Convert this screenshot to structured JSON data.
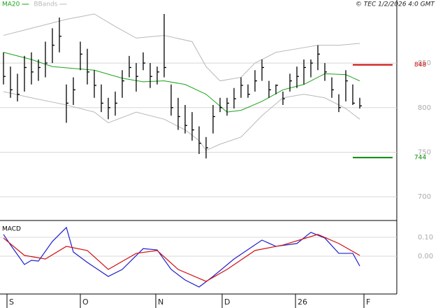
{
  "credit": "© TEC 1/2/2026 4:0 GMT",
  "chart_data": [
    {
      "type": "hlc",
      "high": [
        862,
        846,
        838,
        858,
        862,
        854,
        874,
        889,
        901,
        826,
        834,
        874,
        866,
        842,
        826,
        811,
        818,
        842,
        858,
        850,
        862,
        850,
        846,
        905,
        826,
        811,
        803,
        795,
        779,
        767,
        803,
        811,
        811,
        822,
        834,
        826,
        842,
        854,
        830,
        826,
        818,
        838,
        846,
        854,
        854,
        870,
        850,
        834,
        815,
        842,
        826,
        811
      ],
      "low": [
        826,
        811,
        807,
        818,
        826,
        830,
        834,
        850,
        862,
        783,
        803,
        842,
        826,
        811,
        795,
        787,
        791,
        811,
        834,
        818,
        842,
        822,
        826,
        834,
        791,
        775,
        771,
        763,
        748,
        743,
        771,
        795,
        791,
        799,
        811,
        811,
        818,
        830,
        811,
        815,
        803,
        818,
        822,
        826,
        834,
        842,
        830,
        811,
        795,
        807,
        803,
        799
      ],
      "close": [
        835,
        820,
        815,
        845,
        840,
        845,
        850,
        870,
        880,
        805,
        820,
        860,
        840,
        825,
        805,
        800,
        805,
        830,
        845,
        835,
        850,
        835,
        840,
        845,
        800,
        790,
        780,
        775,
        760,
        755,
        790,
        800,
        805,
        810,
        825,
        815,
        830,
        845,
        820,
        825,
        810,
        830,
        835,
        845,
        850,
        860,
        840,
        820,
        800,
        830,
        805,
        802
      ],
      "color": "#000000",
      "series": [
        {
          "name": "MA20",
          "color": "#1aa31a",
          "x": [
            0,
            4,
            7,
            10,
            13,
            17,
            20,
            23,
            26,
            29,
            32,
            34,
            37,
            40,
            43,
            46,
            49,
            51
          ],
          "values": [
            862,
            854,
            846,
            844,
            842,
            833,
            829,
            830,
            826,
            815,
            795,
            797,
            807,
            820,
            826,
            838,
            837,
            830
          ]
        }
      ],
      "bands": {
        "name": "BBands",
        "color": "#b8b8b8",
        "upper": {
          "x": [
            0,
            4,
            9,
            13,
            16,
            19,
            23,
            27,
            29,
            31,
            34,
            36,
            39,
            42,
            45,
            48,
            51
          ],
          "values": [
            881,
            889,
            899,
            905,
            891,
            878,
            881,
            874,
            846,
            830,
            834,
            850,
            862,
            866,
            870,
            870,
            872
          ]
        },
        "lower": {
          "x": [
            0,
            4,
            9,
            13,
            15,
            19,
            23,
            26,
            28,
            29,
            31,
            34,
            37,
            40,
            43,
            46,
            49,
            51
          ],
          "values": [
            818,
            811,
            803,
            795,
            783,
            795,
            787,
            775,
            763,
            752,
            759,
            767,
            791,
            811,
            815,
            811,
            799,
            787
          ]
        }
      },
      "levels": [
        {
          "value": 848,
          "color": "#cc0000"
        },
        {
          "value": 744,
          "color": "#0a8a0a"
        }
      ],
      "ylim": [
        675,
        905
      ],
      "yticks": [
        700,
        750,
        800,
        850
      ],
      "grid": true
    },
    {
      "type": "line",
      "title": "MACD",
      "series": [
        {
          "color": "#1f1fcc",
          "x": [
            0,
            1,
            3,
            4,
            5,
            7,
            9,
            10,
            12,
            15,
            17,
            20,
            22,
            24,
            26,
            28,
            30,
            33,
            37,
            39,
            42,
            44,
            46,
            48,
            50,
            51
          ],
          "values": [
            0.115,
            0.06,
            -0.044,
            -0.022,
            -0.026,
            0.078,
            0.152,
            0.022,
            -0.033,
            -0.107,
            -0.07,
            0.04,
            0.033,
            -0.07,
            -0.126,
            -0.163,
            -0.107,
            -0.015,
            0.085,
            0.052,
            0.067,
            0.126,
            0.096,
            0.015,
            0.015,
            -0.052
          ]
        },
        {
          "color": "#d01010",
          "x": [
            0,
            3,
            6,
            9,
            12,
            15,
            19,
            22,
            25,
            29,
            32,
            36,
            40,
            45,
            48,
            51
          ],
          "values": [
            0.096,
            0.004,
            -0.015,
            0.052,
            0.03,
            -0.07,
            0.015,
            0.03,
            -0.07,
            -0.133,
            -0.07,
            0.03,
            0.059,
            0.115,
            0.067,
            0.004
          ]
        }
      ],
      "ylim": [
        -0.2,
        0.185
      ],
      "yticks": [
        {
          "value": 0.1,
          "label": "0.10"
        },
        {
          "value": 0,
          "label": "0.00"
        }
      ],
      "xticks": [
        {
          "value": 1,
          "label": "S"
        },
        {
          "value": 11.5,
          "label": "O"
        },
        {
          "value": 22.3,
          "label": "N"
        },
        {
          "value": 31.8,
          "label": "D"
        },
        {
          "value": 42.3,
          "label": "26"
        },
        {
          "value": 52.1,
          "label": "F"
        }
      ],
      "grid": true
    }
  ]
}
